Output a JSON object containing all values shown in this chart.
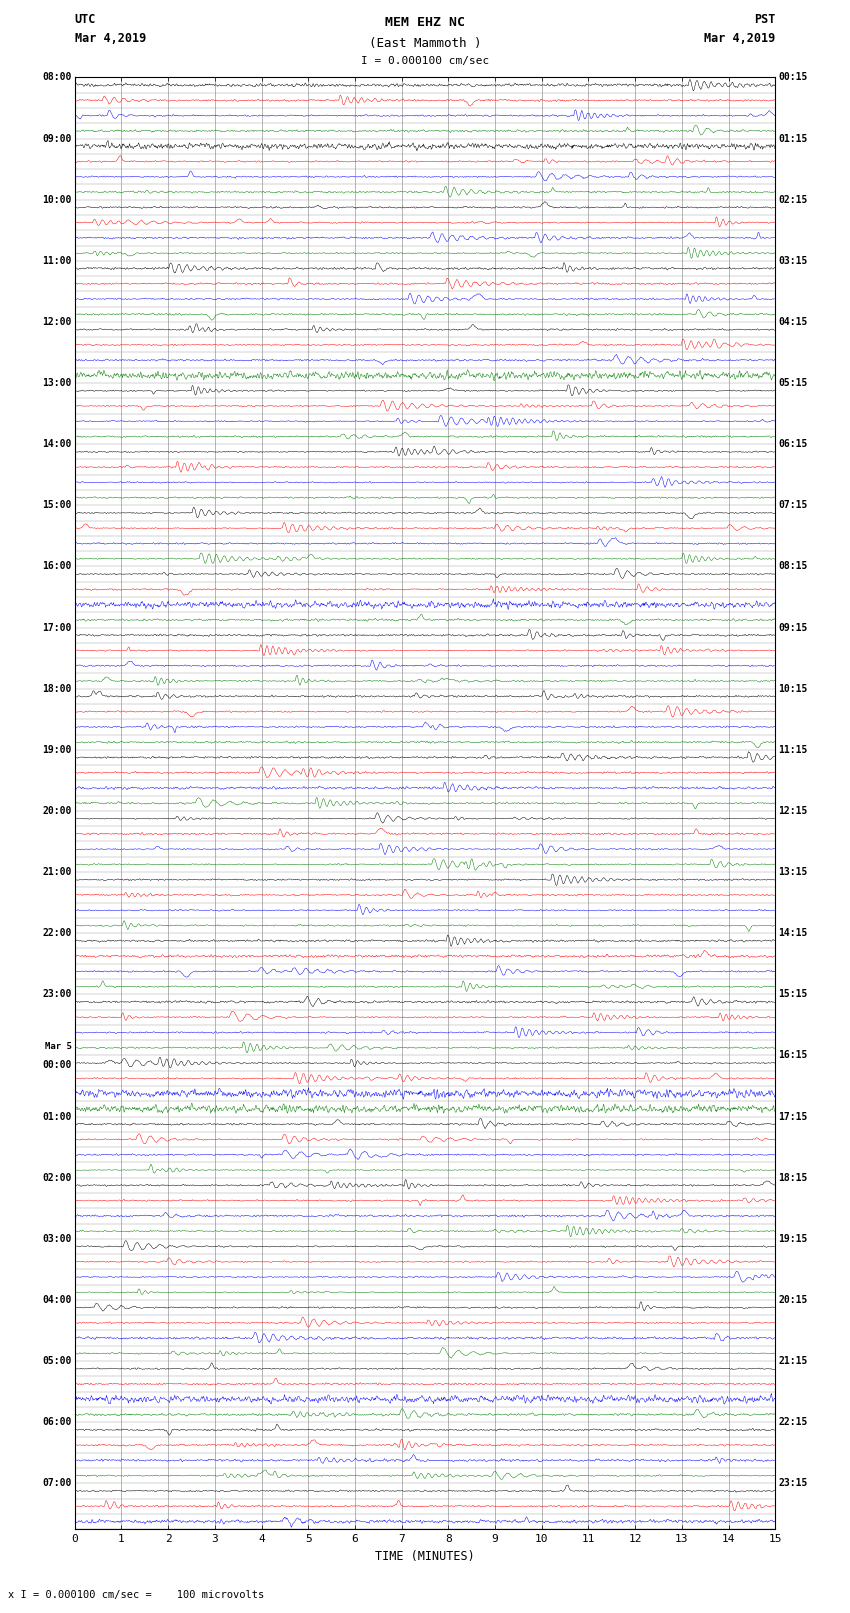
{
  "title_line1": "MEM EHZ NC",
  "title_line2": "(East Mammoth )",
  "title_scale": "I = 0.000100 cm/sec",
  "left_header_line1": "UTC",
  "left_header_line2": "Mar 4,2019",
  "right_header_line1": "PST",
  "right_header_line2": "Mar 4,2019",
  "bottom_label": "TIME (MINUTES)",
  "bottom_note": "x I = 0.000100 cm/sec =    100 microvolts",
  "xlim": [
    0,
    15
  ],
  "xticks": [
    0,
    1,
    2,
    3,
    4,
    5,
    6,
    7,
    8,
    9,
    10,
    11,
    12,
    13,
    14,
    15
  ],
  "utc_labels": [
    "08:00",
    "09:00",
    "10:00",
    "11:00",
    "12:00",
    "13:00",
    "14:00",
    "15:00",
    "16:00",
    "17:00",
    "18:00",
    "19:00",
    "20:00",
    "21:00",
    "22:00",
    "23:00",
    "Mar 5\n00:00",
    "01:00",
    "02:00",
    "03:00",
    "04:00",
    "05:00",
    "06:00",
    "07:00"
  ],
  "pst_labels": [
    "00:15",
    "01:15",
    "02:15",
    "03:15",
    "04:15",
    "05:15",
    "06:15",
    "07:15",
    "08:15",
    "09:15",
    "10:15",
    "11:15",
    "12:15",
    "13:15",
    "14:15",
    "15:15",
    "16:15",
    "17:15",
    "18:15",
    "19:15",
    "20:15",
    "21:15",
    "22:15",
    "23:15"
  ],
  "colors": [
    "black",
    "red",
    "blue",
    "green"
  ],
  "n_rows": 95,
  "rows_per_hour": 4,
  "n_hours": 24,
  "background_color": "white",
  "grid_color": "#999999",
  "fig_width": 8.5,
  "fig_height": 16.13,
  "noise_amp": 0.06,
  "trace_scale": 0.38
}
